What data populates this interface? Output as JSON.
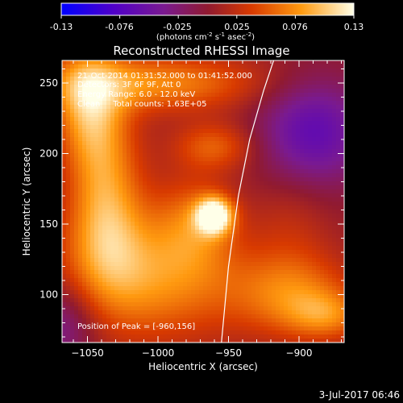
{
  "colorbar": {
    "ticks": [
      "-0.13",
      "-0.076",
      "-0.025",
      "0.025",
      "0.076",
      "0.13"
    ],
    "units_prefix": "(photons cm",
    "units_exp1": "-2",
    "units_mid": " s",
    "units_exp2": "-1",
    "units_mid2": " asec",
    "units_exp3": "-2",
    "units_suffix": ")",
    "range": [
      -0.13,
      0.13
    ]
  },
  "chart_data": {
    "type": "heatmap",
    "title": "Reconstructed RHESSI Image",
    "xlabel": "Heliocentric X (arcsec)",
    "ylabel": "Heliocentric Y (arcsec)",
    "xlim": [
      -1068,
      -868
    ],
    "ylim": [
      66,
      266
    ],
    "xticks": [
      -1050,
      -1000,
      -950,
      -900
    ],
    "yticks": [
      100,
      150,
      200,
      250
    ],
    "xtick_labels": [
      "−1050",
      "−1000",
      "−950",
      "−900"
    ],
    "ytick_labels": [
      "100",
      "150",
      "200",
      "250"
    ],
    "peak": {
      "x": -960,
      "y": 156
    },
    "limb_curve": [
      [
        -955,
        66
      ],
      [
        -950,
        120
      ],
      [
        -943,
        170
      ],
      [
        -935,
        210
      ],
      [
        -925,
        245
      ],
      [
        -918,
        266
      ]
    ],
    "sources": [
      {
        "x": -960,
        "y": 156,
        "value": 0.13,
        "sx": 9,
        "sy": 9
      },
      {
        "x": -975,
        "y": 150,
        "value": 0.05,
        "sx": 20,
        "sy": 24
      },
      {
        "x": -1038,
        "y": 190,
        "value": 0.06,
        "sx": 18,
        "sy": 38
      },
      {
        "x": -1005,
        "y": 250,
        "value": 0.07,
        "sx": 55,
        "sy": 14
      },
      {
        "x": -1050,
        "y": 235,
        "value": 0.07,
        "sx": 16,
        "sy": 28
      },
      {
        "x": -960,
        "y": 205,
        "value": 0.05,
        "sx": 20,
        "sy": 12
      },
      {
        "x": -1005,
        "y": 110,
        "value": 0.07,
        "sx": 45,
        "sy": 30
      },
      {
        "x": -1035,
        "y": 140,
        "value": 0.05,
        "sx": 20,
        "sy": 30
      },
      {
        "x": -905,
        "y": 100,
        "value": 0.06,
        "sx": 30,
        "sy": 20
      },
      {
        "x": -880,
        "y": 85,
        "value": 0.05,
        "sx": 20,
        "sy": 12
      },
      {
        "x": -905,
        "y": 150,
        "value": 0.02,
        "sx": 20,
        "sy": 30
      },
      {
        "x": -890,
        "y": 215,
        "value": -0.07,
        "sx": 28,
        "sy": 28
      },
      {
        "x": -1068,
        "y": 80,
        "value": -0.05,
        "sx": 18,
        "sy": 22
      }
    ]
  },
  "annotations": {
    "time": "21-Oct-2014 01:31:52.000 to 01:41:52.000",
    "detectors": "Detectors: 3F 6F 9F, Att 0",
    "energy": "Energy Range: 6.0 - 12.0 keV",
    "clean": "Clean     Total counts: 1.63E+05",
    "peak": "Position of Peak = [-960,156]"
  },
  "footer_date": "3-Jul-2017 06:46"
}
